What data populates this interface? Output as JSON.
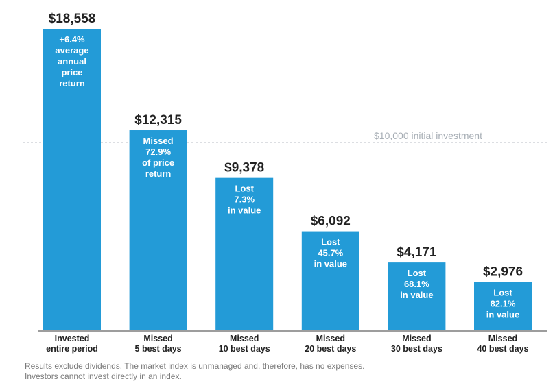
{
  "chart_data": {
    "type": "bar",
    "categories": [
      [
        "Invested",
        "entire period"
      ],
      [
        "Missed",
        "5 best days"
      ],
      [
        "Missed",
        "10 best days"
      ],
      [
        "Missed",
        "20 best days"
      ],
      [
        "Missed",
        "30 best days"
      ],
      [
        "Missed",
        "40 best days"
      ]
    ],
    "values": [
      18558,
      12315,
      9378,
      6092,
      4171,
      2976
    ],
    "value_labels": [
      "$18,558",
      "$12,315",
      "$9,378",
      "$6,092",
      "$4,171",
      "$2,976"
    ],
    "annotations": [
      [
        "+6.4%",
        "average",
        "annual",
        "price",
        "return"
      ],
      [
        "Missed",
        "72.9%",
        "of price",
        "return"
      ],
      [
        "Lost",
        "7.3%",
        "in value"
      ],
      [
        "Lost",
        "45.7%",
        "in value"
      ],
      [
        "Lost",
        "68.1%",
        "in value"
      ],
      [
        "Lost",
        "82.1%",
        "in value"
      ]
    ],
    "reference_line": {
      "value": 10000,
      "label": "$10,000 initial investment"
    },
    "grid": false,
    "bar_color": "#239bd7"
  },
  "footnote": [
    "Results exclude dividends. The market index is unmanaged and, therefore, has no expenses.",
    "Investors cannot invest directly in an index."
  ]
}
